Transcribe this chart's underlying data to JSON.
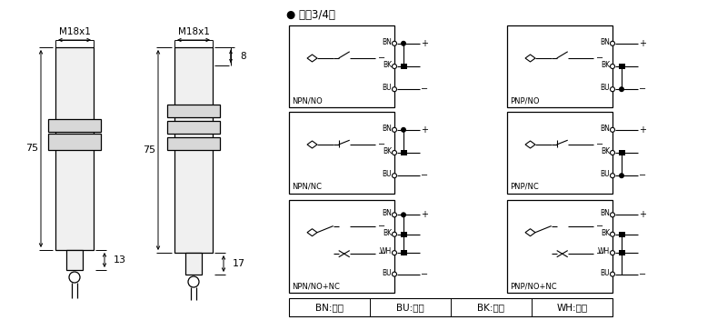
{
  "bg_color": "#ffffff",
  "title_text": "● 直涁3/4线",
  "legend": [
    "BN:棕色",
    "BU:兰色",
    "BK:黑色",
    "WH:白色"
  ],
  "left_sensor": {
    "label": "M18x1",
    "dim_75_label": "75",
    "dim_13_label": "13"
  },
  "right_sensor": {
    "label": "M18x1",
    "dim_8_label": "8",
    "dim_75_label": "75",
    "dim_17_label": "17"
  },
  "npn_labels": [
    "NPN/NO",
    "NPN/NC",
    "NPN/NO+NC"
  ],
  "pnp_labels": [
    "PNP/NO",
    "PNP/NC",
    "PNP/NO+NC"
  ],
  "wire_bn": "BN",
  "wire_bk": "BK",
  "wire_bu": "BU",
  "wire_wh": "WH",
  "plus": "+",
  "minus": "-"
}
